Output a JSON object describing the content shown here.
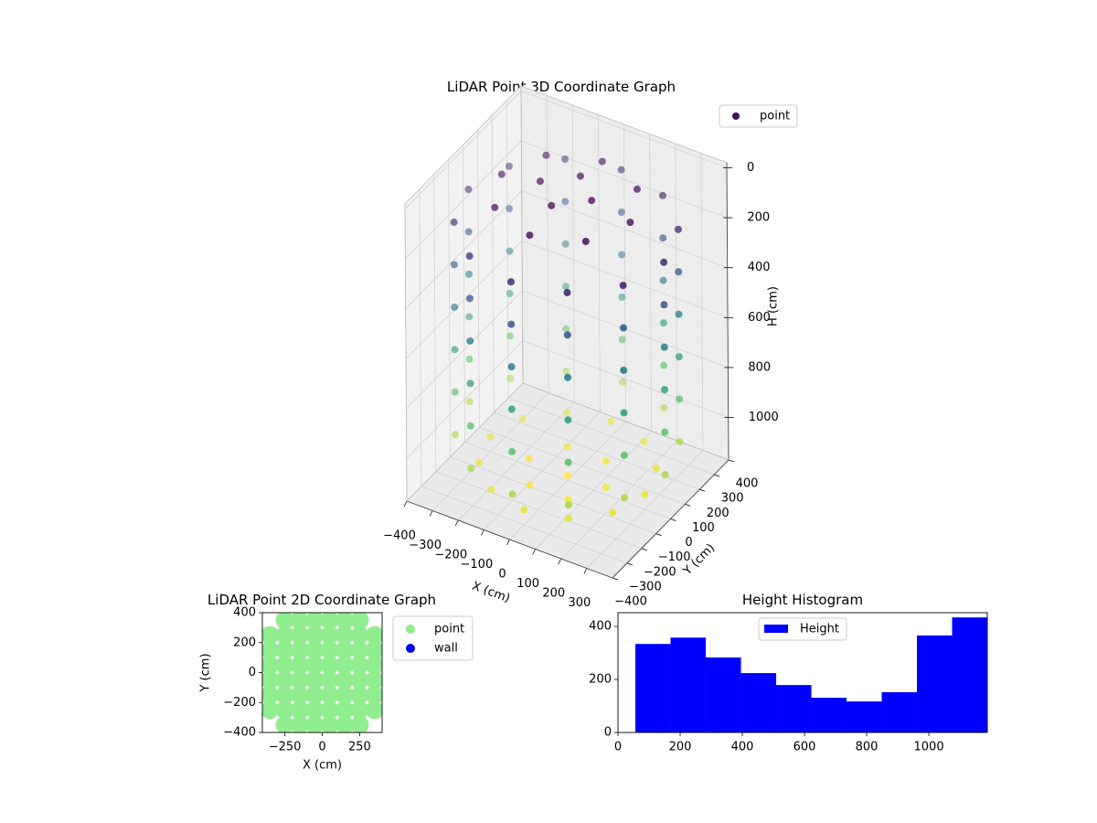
{
  "chart_data": [
    {
      "type": "scatter3d",
      "title": "LiDAR Point 3D Coordinate Graph",
      "xlabel": "X (cm)",
      "ylabel": "Y (cm)",
      "zlabel": "H (cm)",
      "legend": "upper right",
      "colormap": "viridis",
      "grid": true,
      "zaxis_inverted": true,
      "xlim": [
        -400,
        400
      ],
      "ylim": [
        -400,
        400
      ],
      "zlim": [
        -20,
        1170
      ],
      "xticks": [
        {
          "value": -400,
          "label": "−400"
        },
        {
          "value": -300,
          "label": "−300"
        },
        {
          "value": -200,
          "label": "−200"
        },
        {
          "value": -100,
          "label": "−100"
        },
        0,
        100,
        200,
        300
      ],
      "yticks": [
        {
          "value": -400,
          "label": "−400"
        },
        {
          "value": -300,
          "label": "−300"
        },
        {
          "value": -200,
          "label": "−200"
        },
        {
          "value": -100,
          "label": "−100"
        },
        0,
        100,
        200,
        300,
        400
      ],
      "zticks": [
        0,
        200,
        400,
        600,
        800,
        1000
      ],
      "series": [
        {
          "name": "point",
          "x": [
            380,
            329,
            190,
            0,
            -190,
            -329,
            -380,
            -329,
            -190,
            0,
            190,
            329,
            380,
            329,
            190,
            0,
            -190,
            -329,
            -380,
            -329,
            -190,
            0,
            190,
            329,
            380,
            329,
            190,
            0,
            -190,
            -329,
            -380,
            -329,
            -190,
            0,
            190,
            329,
            380,
            329,
            190,
            0,
            -190,
            -329,
            -380,
            -329,
            -190,
            0,
            190,
            329,
            380,
            329,
            190,
            0,
            -190,
            -329,
            -380,
            -329,
            -190,
            0,
            190,
            329,
            380,
            329,
            190,
            0,
            -190,
            -329,
            -380,
            -329,
            -190,
            0,
            190,
            329,
            250,
            177,
            0,
            -177,
            -250,
            -177,
            0,
            177,
            100,
            0,
            -100,
            0,
            300,
            260,
            150,
            0,
            -150,
            -260,
            -300,
            -260,
            -150,
            0,
            150,
            260,
            150,
            75,
            -75,
            -150,
            -75,
            75,
            0
          ],
          "y": [
            0,
            190,
            329,
            380,
            329,
            190,
            0,
            -190,
            -329,
            -380,
            -329,
            -190,
            0,
            190,
            329,
            380,
            329,
            190,
            0,
            -190,
            -329,
            -380,
            -329,
            -190,
            0,
            190,
            329,
            380,
            329,
            190,
            0,
            -190,
            -329,
            -380,
            -329,
            -190,
            0,
            190,
            329,
            380,
            329,
            190,
            0,
            -190,
            -329,
            -380,
            -329,
            -190,
            0,
            190,
            329,
            380,
            329,
            190,
            0,
            -190,
            -329,
            -380,
            -329,
            -190,
            0,
            190,
            329,
            380,
            329,
            190,
            0,
            -190,
            -329,
            -380,
            -329,
            -190,
            0,
            177,
            250,
            177,
            0,
            -177,
            -250,
            -177,
            0,
            100,
            0,
            -100,
            0,
            150,
            260,
            300,
            260,
            150,
            0,
            -150,
            -260,
            -300,
            -260,
            -150,
            0,
            130,
            130,
            0,
            -130,
            -130,
            0
          ],
          "z": [
            150,
            150,
            150,
            150,
            150,
            150,
            150,
            150,
            150,
            150,
            150,
            150,
            320,
            320,
            320,
            320,
            320,
            320,
            320,
            320,
            320,
            320,
            320,
            320,
            490,
            490,
            490,
            490,
            490,
            490,
            490,
            490,
            490,
            490,
            490,
            490,
            660,
            660,
            660,
            660,
            660,
            660,
            660,
            660,
            660,
            660,
            660,
            660,
            830,
            830,
            830,
            830,
            830,
            830,
            830,
            830,
            830,
            830,
            830,
            830,
            1000,
            1000,
            1000,
            1000,
            1000,
            1000,
            1000,
            1000,
            1000,
            1000,
            1000,
            1000,
            40,
            40,
            40,
            40,
            40,
            40,
            40,
            40,
            10,
            10,
            10,
            10,
            1110,
            1110,
            1110,
            1110,
            1110,
            1110,
            1110,
            1110,
            1110,
            1110,
            1110,
            1110,
            1140,
            1140,
            1140,
            1140,
            1140,
            1140,
            1150
          ]
        }
      ]
    },
    {
      "type": "scatter",
      "title": "LiDAR Point 2D Coordinate Graph",
      "xlabel": "X (cm)",
      "ylabel": "Y (cm)",
      "legend": "outside upper right",
      "xlim": [
        -400,
        400
      ],
      "ylim": [
        -400,
        400
      ],
      "xticks": [
        {
          "value": -250,
          "label": "−250"
        },
        0,
        250
      ],
      "yticks": [
        {
          "value": -400,
          "label": "−400"
        },
        {
          "value": -200,
          "label": "−200"
        },
        0,
        200,
        400
      ],
      "series": [
        {
          "name": "point",
          "color": "#90ee90",
          "x": [
            -250,
            -150,
            -50,
            50,
            150,
            250,
            -350,
            -250,
            -150,
            -50,
            50,
            150,
            250,
            350,
            -350,
            -250,
            -150,
            -50,
            50,
            150,
            250,
            350,
            -350,
            -250,
            -150,
            -50,
            50,
            150,
            250,
            350,
            -350,
            -250,
            -150,
            -50,
            50,
            150,
            250,
            350,
            -350,
            -250,
            -150,
            -50,
            50,
            150,
            250,
            350,
            -350,
            -250,
            -150,
            -50,
            50,
            150,
            250,
            350,
            -250,
            -150,
            -50,
            50,
            150,
            250
          ],
          "y": [
            -350,
            -350,
            -350,
            -350,
            -350,
            -350,
            -250,
            -250,
            -250,
            -250,
            -250,
            -250,
            -250,
            -250,
            -150,
            -150,
            -150,
            -150,
            -150,
            -150,
            -150,
            -150,
            -50,
            -50,
            -50,
            -50,
            -50,
            -50,
            -50,
            -50,
            50,
            50,
            50,
            50,
            50,
            50,
            50,
            50,
            150,
            150,
            150,
            150,
            150,
            150,
            150,
            150,
            250,
            250,
            250,
            250,
            250,
            250,
            250,
            250,
            350,
            350,
            350,
            350,
            350,
            350
          ]
        },
        {
          "name": "wall",
          "color": "#0000ff",
          "x": [],
          "y": []
        }
      ]
    },
    {
      "type": "histogram",
      "title": "Height Histogram",
      "name": "Height",
      "color": "#0000ff",
      "legend": "upper center",
      "bins": [
        56,
        169.2,
        282.4,
        395.6,
        508.8,
        622,
        735.2,
        848.4,
        961.6,
        1074.8,
        1188
      ],
      "counts": [
        334,
        358,
        283,
        224,
        179,
        131,
        117,
        152,
        366,
        434
      ],
      "xlim": [
        0,
        1188
      ],
      "ylim": [
        0,
        452
      ],
      "xticks": [
        0,
        200,
        400,
        600,
        800,
        1000
      ],
      "yticks": [
        0,
        200,
        400
      ]
    }
  ]
}
